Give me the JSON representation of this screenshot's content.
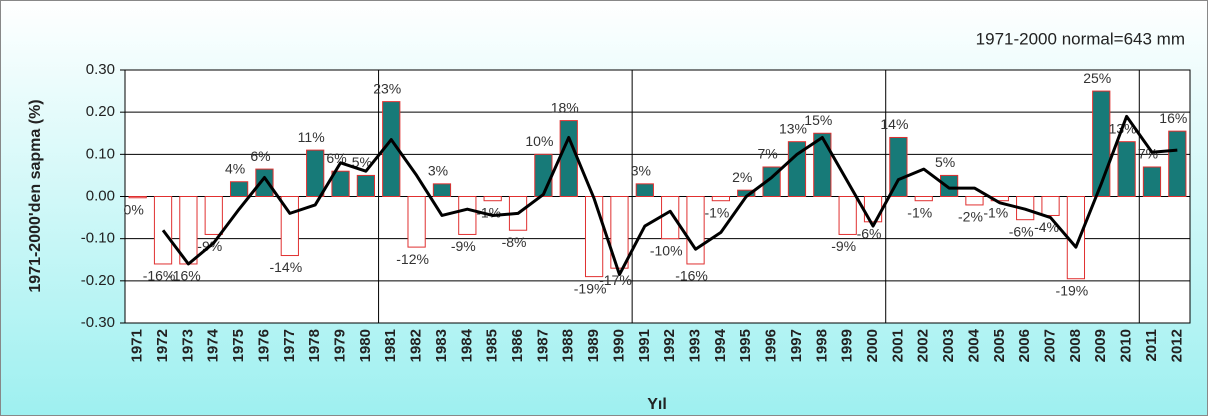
{
  "chart_data": {
    "type": "bar",
    "annotation": "1971-2000 normal=643 mm",
    "ylabel": "1971-2000'den sapma (%)",
    "xlabel": "Yıl",
    "categories": [
      "1971",
      "1972",
      "1973",
      "1974",
      "1975",
      "1976",
      "1977",
      "1978",
      "1979",
      "1980",
      "1981",
      "1982",
      "1983",
      "1984",
      "1985",
      "1986",
      "1987",
      "1988",
      "1989",
      "1990",
      "1991",
      "1992",
      "1993",
      "1994",
      "1995",
      "1996",
      "1997",
      "1998",
      "1999",
      "2000",
      "2001",
      "2002",
      "2003",
      "2004",
      "2005",
      "2006",
      "2007",
      "2008",
      "2009",
      "2010",
      "2011",
      "2012"
    ],
    "series": [
      {
        "type": "bar",
        "positive_color": "#177a78",
        "negative_color": "#ffffff",
        "edge_color": "#e03030",
        "values": [
          -0.003,
          -0.16,
          -0.16,
          -0.09,
          0.035,
          0.065,
          -0.14,
          0.11,
          0.06,
          0.05,
          0.225,
          -0.12,
          0.03,
          -0.09,
          -0.01,
          -0.08,
          0.1,
          0.18,
          -0.19,
          -0.17,
          0.03,
          -0.1,
          -0.16,
          -0.01,
          0.015,
          0.07,
          0.13,
          0.15,
          -0.09,
          -0.06,
          0.14,
          -0.01,
          0.05,
          -0.02,
          -0.01,
          -0.055,
          -0.045,
          -0.195,
          0.25,
          0.13,
          0.07,
          0.155
        ],
        "value_labels": [
          "0%",
          "-16%",
          "-16%",
          "-9%",
          "4%",
          "6%",
          "-14%",
          "11%",
          "6%",
          "5%",
          "23%",
          "-12%",
          "3%",
          "-9%",
          "-1%",
          "-8%",
          "10%",
          "18%",
          "-19%",
          "-17%",
          "3%",
          "-10%",
          "-16%",
          "-1%",
          "2%",
          "7%",
          "13%",
          "15%",
          "-9%",
          "-6%",
          "14%",
          "-1%",
          "5%",
          "-2%",
          "-1%",
          "-6%",
          "-4%",
          "-19%",
          "25%",
          "13%",
          "7%",
          "16%"
        ]
      },
      {
        "type": "line",
        "color": "#000000",
        "values": [
          null,
          -0.08,
          -0.16,
          -0.11,
          -0.03,
          0.045,
          -0.04,
          -0.02,
          0.08,
          0.06,
          0.135,
          0.05,
          -0.045,
          -0.03,
          -0.045,
          -0.04,
          0.005,
          0.14,
          -0.005,
          -0.185,
          -0.07,
          -0.035,
          -0.125,
          -0.085,
          0.0,
          0.045,
          0.1,
          0.14,
          0.035,
          -0.07,
          0.04,
          0.065,
          0.02,
          0.02,
          -0.015,
          -0.03,
          -0.05,
          -0.12,
          0.03,
          0.19,
          0.105,
          0.11
        ]
      }
    ],
    "ylim": [
      -0.3,
      0.3
    ],
    "yticks": [
      {
        "value": -0.3,
        "label": "-0.30"
      },
      {
        "value": -0.2,
        "label": "-0.20"
      },
      {
        "value": -0.1,
        "label": "-0.10"
      },
      {
        "value": 0,
        "label": "0.00"
      },
      {
        "value": 0.1,
        "label": "0.10"
      },
      {
        "value": 0.2,
        "label": "0.20"
      },
      {
        "value": 0.3,
        "label": "0.30"
      }
    ],
    "grid": true,
    "x_grid_interval": 10
  }
}
